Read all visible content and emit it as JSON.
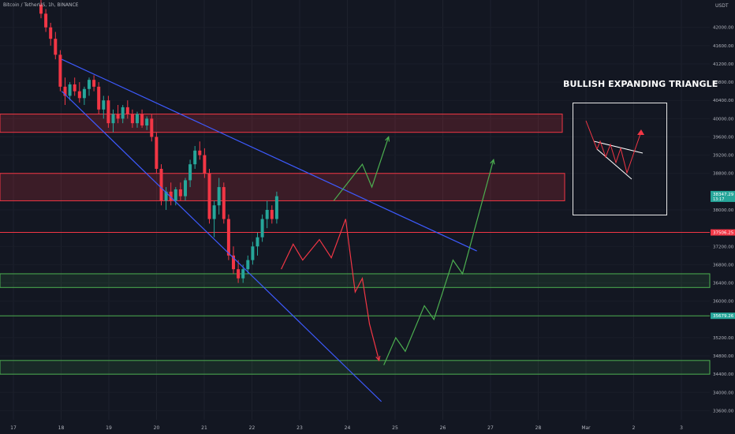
{
  "header": {
    "symbol_line": "Bitcoin / TetherUS, 1h, BINANCE",
    "currency": "USDT"
  },
  "annotation": {
    "title": "BULLISH EXPANDING TRIANGLE"
  },
  "chart_data": {
    "type": "candlestick",
    "title": "",
    "ylim": [
      33400,
      42600
    ],
    "x_tick_labels": [
      "17",
      "18",
      "19",
      "20",
      "21",
      "22",
      "23",
      "24",
      "25",
      "26",
      "27",
      "28",
      "Mar",
      "2",
      "3"
    ],
    "y_ticks": [
      "42000.00",
      "41600.00",
      "41200.00",
      "40800.00",
      "40400.00",
      "40000.00",
      "39600.00",
      "39200.00",
      "38800.00",
      "38000.00",
      "37200.00",
      "36800.00",
      "36400.00",
      "36000.00",
      "35200.00",
      "34800.00",
      "34400.00",
      "34000.00",
      "33600.00"
    ],
    "price_badges": [
      {
        "value": "38347.29",
        "sub": "13:17",
        "color": "#26a69a"
      },
      {
        "value": "37506.25",
        "color": "#f23645"
      },
      {
        "value": "35679.26",
        "color": "#26a69a"
      }
    ],
    "candles": [
      {
        "o": 42500,
        "h": 42600,
        "l": 42200,
        "c": 42300
      },
      {
        "o": 42300,
        "h": 42400,
        "l": 41900,
        "c": 42000
      },
      {
        "o": 42000,
        "h": 42100,
        "l": 41600,
        "c": 41750
      },
      {
        "o": 41750,
        "h": 41900,
        "l": 41300,
        "c": 41400
      },
      {
        "o": 41400,
        "h": 41500,
        "l": 40600,
        "c": 40700
      },
      {
        "o": 40700,
        "h": 40900,
        "l": 40300,
        "c": 40500
      },
      {
        "o": 40500,
        "h": 40800,
        "l": 40400,
        "c": 40750
      },
      {
        "o": 40750,
        "h": 40900,
        "l": 40500,
        "c": 40600
      },
      {
        "o": 40600,
        "h": 40800,
        "l": 40350,
        "c": 40450
      },
      {
        "o": 40450,
        "h": 40700,
        "l": 40300,
        "c": 40650
      },
      {
        "o": 40650,
        "h": 40900,
        "l": 40500,
        "c": 40850
      },
      {
        "o": 40850,
        "h": 40950,
        "l": 40600,
        "c": 40700
      },
      {
        "o": 40700,
        "h": 40800,
        "l": 40100,
        "c": 40200
      },
      {
        "o": 40200,
        "h": 40500,
        "l": 40000,
        "c": 40400
      },
      {
        "o": 40400,
        "h": 40500,
        "l": 39800,
        "c": 39900
      },
      {
        "o": 39900,
        "h": 40200,
        "l": 39700,
        "c": 40100
      },
      {
        "o": 40100,
        "h": 40300,
        "l": 39900,
        "c": 40000
      },
      {
        "o": 40000,
        "h": 40300,
        "l": 39900,
        "c": 40250
      },
      {
        "o": 40250,
        "h": 40400,
        "l": 40000,
        "c": 40100
      },
      {
        "o": 40100,
        "h": 40200,
        "l": 39800,
        "c": 39900
      },
      {
        "o": 39900,
        "h": 40150,
        "l": 39800,
        "c": 40100
      },
      {
        "o": 40100,
        "h": 40200,
        "l": 39800,
        "c": 39850
      },
      {
        "o": 39850,
        "h": 40050,
        "l": 39750,
        "c": 40000
      },
      {
        "o": 40000,
        "h": 40100,
        "l": 39500,
        "c": 39600
      },
      {
        "o": 39600,
        "h": 39700,
        "l": 38800,
        "c": 38900
      },
      {
        "o": 38900,
        "h": 39000,
        "l": 38100,
        "c": 38200
      },
      {
        "o": 38200,
        "h": 38500,
        "l": 38000,
        "c": 38400
      },
      {
        "o": 38400,
        "h": 38600,
        "l": 38100,
        "c": 38200
      },
      {
        "o": 38200,
        "h": 38500,
        "l": 38100,
        "c": 38450
      },
      {
        "o": 38450,
        "h": 38600,
        "l": 38200,
        "c": 38300
      },
      {
        "o": 38300,
        "h": 38700,
        "l": 38200,
        "c": 38650
      },
      {
        "o": 38650,
        "h": 39100,
        "l": 38500,
        "c": 39000
      },
      {
        "o": 39000,
        "h": 39400,
        "l": 38900,
        "c": 39300
      },
      {
        "o": 39300,
        "h": 39500,
        "l": 39100,
        "c": 39200
      },
      {
        "o": 39200,
        "h": 39350,
        "l": 38700,
        "c": 38800
      },
      {
        "o": 38800,
        "h": 38900,
        "l": 37700,
        "c": 37800
      },
      {
        "o": 37800,
        "h": 38200,
        "l": 37400,
        "c": 38100
      },
      {
        "o": 38100,
        "h": 38700,
        "l": 37900,
        "c": 38500
      },
      {
        "o": 38500,
        "h": 38600,
        "l": 37700,
        "c": 37800
      },
      {
        "o": 37800,
        "h": 37900,
        "l": 36900,
        "c": 37000
      },
      {
        "o": 37000,
        "h": 37200,
        "l": 36600,
        "c": 36700
      },
      {
        "o": 36700,
        "h": 36900,
        "l": 36400,
        "c": 36500
      },
      {
        "o": 36500,
        "h": 36800,
        "l": 36400,
        "c": 36700
      },
      {
        "o": 36700,
        "h": 37000,
        "l": 36600,
        "c": 36900
      },
      {
        "o": 36900,
        "h": 37300,
        "l": 36800,
        "c": 37200
      },
      {
        "o": 37200,
        "h": 37500,
        "l": 37000,
        "c": 37400
      },
      {
        "o": 37400,
        "h": 37900,
        "l": 37300,
        "c": 37800
      },
      {
        "o": 37800,
        "h": 38200,
        "l": 37600,
        "c": 38000
      },
      {
        "o": 38000,
        "h": 38100,
        "l": 37700,
        "c": 37800
      },
      {
        "o": 37800,
        "h": 38400,
        "l": 37700,
        "c": 38300
      }
    ],
    "resistance_zones": [
      [
        39700,
        40100
      ],
      [
        38200,
        38800
      ]
    ],
    "support_zones": [
      [
        36300,
        36600
      ],
      [
        34400,
        34700
      ]
    ],
    "levels": [
      {
        "value": 37506.25,
        "color": "#f23645"
      },
      {
        "value": 35679.26,
        "color": "#4caf50"
      }
    ],
    "upper_trendline": [
      [
        0.6,
        41300
      ],
      [
        9.3,
        37100
      ]
    ],
    "lower_trendline": [
      [
        0.6,
        40600
      ],
      [
        7.3,
        33800
      ]
    ],
    "bull_path": [
      [
        6.3,
        38200
      ],
      [
        6.6,
        38600
      ],
      [
        6.9,
        39000
      ],
      [
        7.1,
        38500
      ],
      [
        7.45,
        39600
      ]
    ],
    "bear_path": [
      [
        5.2,
        36700
      ],
      [
        5.45,
        37250
      ],
      [
        5.65,
        36900
      ],
      [
        6.0,
        37350
      ],
      [
        6.25,
        36950
      ],
      [
        6.55,
        37800
      ],
      [
        6.75,
        36200
      ],
      [
        6.9,
        36500
      ],
      [
        7.05,
        35500
      ],
      [
        7.25,
        34700
      ]
    ],
    "recovery_path": [
      [
        7.35,
        34600
      ],
      [
        7.6,
        35200
      ],
      [
        7.8,
        34900
      ],
      [
        8.2,
        35900
      ],
      [
        8.4,
        35600
      ],
      [
        8.8,
        36900
      ],
      [
        9.0,
        36600
      ],
      [
        9.65,
        39100
      ]
    ]
  }
}
